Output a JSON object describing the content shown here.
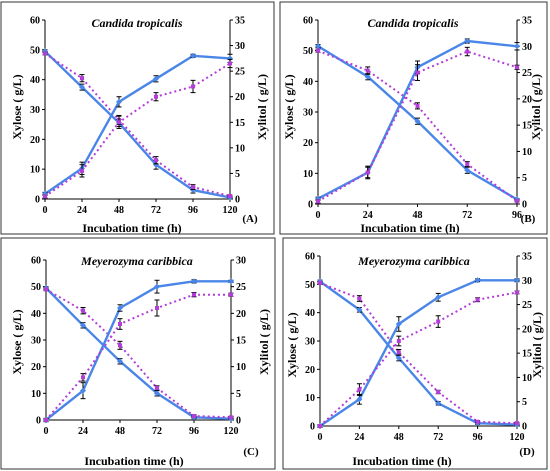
{
  "chart_data": [
    {
      "type": "line",
      "panel_label": "(A)",
      "title": "Candida tropicalis",
      "xlabel": "Incubation time (h)",
      "ylabel_left": "Xylose ( g/L)",
      "ylabel_right": "Xylitol ( g/L)",
      "x": [
        0,
        24,
        48,
        72,
        96,
        120
      ],
      "x_ticks": [
        "0",
        "24",
        "48",
        "72",
        "96",
        "120"
      ],
      "ylim_left": [
        0,
        60
      ],
      "yticks_left": [
        "0",
        "10",
        "20",
        "30",
        "40",
        "50",
        "60"
      ],
      "ylim_right": [
        0,
        35
      ],
      "yticks_right": [
        "0",
        "5",
        "10",
        "15",
        "20",
        "25",
        "30",
        "35"
      ],
      "series": [
        {
          "axis": "left",
          "style": "solid",
          "values": [
            49.5,
            37.5,
            25.5,
            11.5,
            3,
            0.5
          ],
          "errors": [
            0.5,
            1,
            1.2,
            1.5,
            1,
            0.3
          ]
        },
        {
          "axis": "left",
          "style": "dotted",
          "values": [
            48.8,
            40.5,
            26.5,
            13,
            4,
            1
          ],
          "errors": [
            0.5,
            1.2,
            1.5,
            1.2,
            0.8,
            0.3
          ]
        },
        {
          "axis": "right",
          "style": "solid",
          "values": [
            1,
            6,
            19,
            23.5,
            28,
            27.5
          ],
          "errors": [
            0.3,
            1.2,
            1,
            0.6,
            0.3,
            0.8
          ]
        },
        {
          "axis": "right",
          "style": "dotted",
          "values": [
            0.5,
            5.5,
            15,
            20,
            22,
            26.5
          ],
          "errors": [
            0.3,
            1.2,
            1.2,
            0.8,
            1.2,
            0.8
          ]
        }
      ]
    },
    {
      "type": "line",
      "panel_label": "(B)",
      "title": "Candida tropicalis",
      "xlabel": "Incubation time (h)",
      "ylabel_left": "Xylose ( g/L)",
      "ylabel_right": "Xylitol ( g/L)",
      "x": [
        0,
        24,
        48,
        72,
        96
      ],
      "x_ticks": [
        "0",
        "24",
        "48",
        "72",
        "96"
      ],
      "ylim_left": [
        0,
        60
      ],
      "yticks_left": [
        "0",
        "10",
        "20",
        "30",
        "40",
        "50",
        "60"
      ],
      "ylim_right": [
        0,
        35
      ],
      "yticks_right": [
        "0",
        "5",
        "10",
        "15",
        "20",
        "25",
        "30",
        "35"
      ],
      "series": [
        {
          "axis": "left",
          "style": "solid",
          "values": [
            51.5,
            41.5,
            27,
            11,
            1.5
          ],
          "errors": [
            0.5,
            1,
            1,
            1,
            0.3
          ]
        },
        {
          "axis": "left",
          "style": "dotted",
          "values": [
            50,
            43.5,
            32,
            13,
            1
          ],
          "errors": [
            0.5,
            1.2,
            1,
            0.8,
            0.3
          ]
        },
        {
          "axis": "right",
          "style": "solid",
          "values": [
            1,
            6,
            26,
            31,
            30
          ],
          "errors": [
            0.3,
            1.2,
            1.2,
            0.4,
            0.7
          ]
        },
        {
          "axis": "right",
          "style": "dotted",
          "values": [
            0.5,
            6,
            25,
            29,
            26
          ],
          "errors": [
            0.3,
            1,
            1.5,
            0.8,
            0.4
          ]
        }
      ]
    },
    {
      "type": "line",
      "panel_label": "(C)",
      "title": "Meyerozyma caribbica",
      "xlabel": "Incubation time (h)",
      "ylabel_left": "Xylose ( g/L)",
      "ylabel_right": "Xylitol ( g/L)",
      "x": [
        0,
        24,
        48,
        72,
        96,
        120
      ],
      "x_ticks": [
        "0",
        "24",
        "48",
        "72",
        "96",
        "120"
      ],
      "ylim_left": [
        0,
        60
      ],
      "yticks_left": [
        "0",
        "10",
        "20",
        "30",
        "40",
        "50",
        "60"
      ],
      "ylim_right": [
        0,
        30
      ],
      "yticks_right": [
        "0",
        "5",
        "10",
        "15",
        "20",
        "25",
        "30"
      ],
      "series": [
        {
          "axis": "left",
          "style": "solid",
          "values": [
            49.5,
            35.5,
            22,
            10,
            1,
            0.5
          ],
          "errors": [
            0.5,
            1,
            1,
            1,
            0.5,
            0.5
          ]
        },
        {
          "axis": "left",
          "style": "dotted",
          "values": [
            49,
            41,
            28,
            12,
            1.5,
            1
          ],
          "errors": [
            0.5,
            1.2,
            1.5,
            0.8,
            0.5,
            0.4
          ]
        },
        {
          "axis": "right",
          "style": "solid",
          "values": [
            0,
            5.5,
            21,
            25,
            26,
            26
          ],
          "errors": [
            0.3,
            1.5,
            0.6,
            1.2,
            0.3,
            0.2
          ]
        },
        {
          "axis": "right",
          "style": "dotted",
          "values": [
            0,
            8,
            18,
            21,
            23.5,
            23.5
          ],
          "errors": [
            0.3,
            0.7,
            1,
            1.5,
            0.4,
            0.3
          ]
        }
      ]
    },
    {
      "type": "line",
      "panel_label": "(D)",
      "title": "Meyerozyma caribbica",
      "xlabel": "Incubation time (h)",
      "ylabel_left": "Xylose ( g/L)",
      "ylabel_right": "Xylitol ( g/L)",
      "x": [
        0,
        24,
        48,
        72,
        96,
        120
      ],
      "x_ticks": [
        "0",
        "24",
        "48",
        "72",
        "96",
        "120"
      ],
      "ylim_left": [
        0,
        60
      ],
      "yticks_left": [
        "0",
        "10",
        "20",
        "30",
        "40",
        "50",
        "60"
      ],
      "ylim_right": [
        0,
        35
      ],
      "yticks_right": [
        "0",
        "5",
        "10",
        "15",
        "20",
        "25",
        "30",
        "35"
      ],
      "series": [
        {
          "axis": "left",
          "style": "solid",
          "values": [
            51,
            41,
            24,
            8,
            1,
            0.5
          ],
          "errors": [
            0.5,
            0.8,
            1,
            0.6,
            0.4,
            0.3
          ]
        },
        {
          "axis": "left",
          "style": "dotted",
          "values": [
            50.5,
            45,
            26,
            12,
            1.5,
            1
          ],
          "errors": [
            0.5,
            1,
            1,
            0.6,
            0.4,
            0.3
          ]
        },
        {
          "axis": "right",
          "style": "solid",
          "values": [
            0,
            5.5,
            21,
            26.5,
            30,
            30
          ],
          "errors": [
            0.3,
            1,
            1.5,
            0.8,
            0.3,
            0.3
          ]
        },
        {
          "axis": "right",
          "style": "dotted",
          "values": [
            0,
            7.5,
            17.5,
            21.5,
            26,
            27.5
          ],
          "errors": [
            0.3,
            1.2,
            1,
            1.2,
            0.4,
            0.3
          ]
        }
      ]
    }
  ],
  "colors": {
    "solid_series": "#4a86e8",
    "dotted_series": "#b43cd8",
    "marker": "#4a86e8",
    "dotted_marker": "#b43cd8"
  }
}
